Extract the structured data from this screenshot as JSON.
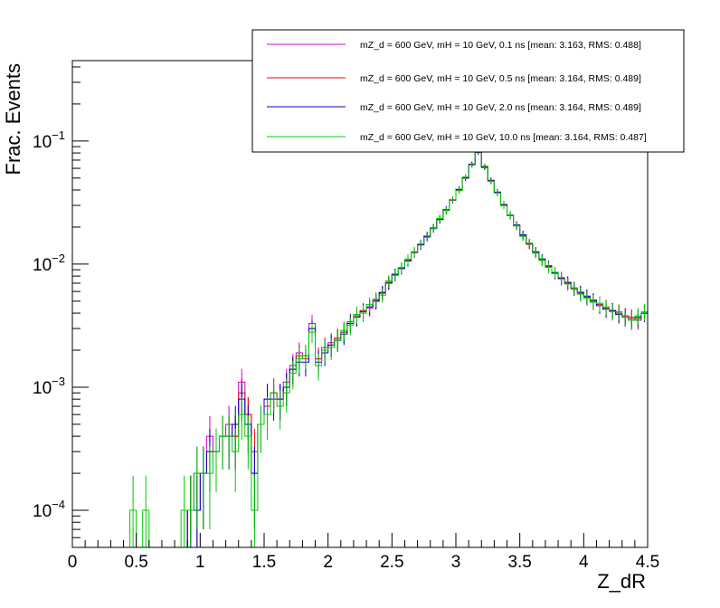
{
  "chart_data": {
    "type": "line",
    "title": "",
    "xlabel": "Z_dR",
    "ylabel": "Frac. Events",
    "xlim": [
      0,
      4.5
    ],
    "ylim": [
      5e-05,
      0.45
    ],
    "yscale": "log",
    "grid": false,
    "legend_position": "top-right",
    "x_ticks": [
      "0",
      "0.5",
      "1",
      "1.5",
      "2",
      "2.5",
      "3",
      "3.5",
      "4",
      "4.5"
    ],
    "y_ticks": [
      {
        "base": "10",
        "exp": "−4",
        "value": 0.0001
      },
      {
        "base": "10",
        "exp": "−3",
        "value": 0.001
      },
      {
        "base": "10",
        "exp": "−2",
        "value": 0.01
      },
      {
        "base": "10",
        "exp": "−1",
        "value": 0.1
      }
    ],
    "bins": 90,
    "x": [
      0.025,
      0.075,
      0.125,
      0.175,
      0.225,
      0.275,
      0.325,
      0.375,
      0.425,
      0.475,
      0.525,
      0.575,
      0.625,
      0.675,
      0.725,
      0.775,
      0.825,
      0.875,
      0.925,
      0.975,
      1.025,
      1.075,
      1.125,
      1.175,
      1.225,
      1.275,
      1.325,
      1.375,
      1.425,
      1.475,
      1.525,
      1.575,
      1.625,
      1.675,
      1.725,
      1.775,
      1.825,
      1.875,
      1.925,
      1.975,
      2.025,
      2.075,
      2.125,
      2.175,
      2.225,
      2.275,
      2.325,
      2.375,
      2.425,
      2.475,
      2.525,
      2.575,
      2.625,
      2.675,
      2.725,
      2.775,
      2.825,
      2.875,
      2.925,
      2.975,
      3.025,
      3.075,
      3.125,
      3.175,
      3.225,
      3.275,
      3.325,
      3.375,
      3.425,
      3.475,
      3.525,
      3.575,
      3.625,
      3.675,
      3.725,
      3.775,
      3.825,
      3.875,
      3.925,
      3.975,
      4.025,
      4.075,
      4.125,
      4.175,
      4.225,
      4.275,
      4.325,
      4.375,
      4.425,
      4.475
    ],
    "series": [
      {
        "name": "mZ_d = 600 GeV, mH = 10 GeV, 0.1 ns [mean: 3.163, RMS: 0.488]",
        "color": "#cc00cc",
        "values": [
          0,
          0,
          0,
          0,
          0,
          0,
          0,
          0,
          0,
          0,
          0,
          0,
          0,
          0,
          0,
          0,
          0,
          0,
          0.0001,
          0.0002,
          0.0002,
          0.0004,
          0.0003,
          0.0004,
          0.0005,
          0.0004,
          0.0011,
          0.0006,
          0.0002,
          0.0005,
          0.0008,
          0.0009,
          0.0008,
          0.0011,
          0.0015,
          0.0019,
          0.0018,
          0.0033,
          0.0017,
          0.0021,
          0.0023,
          0.0025,
          0.0028,
          0.0034,
          0.0039,
          0.0042,
          0.0044,
          0.005,
          0.0058,
          0.0071,
          0.0082,
          0.0093,
          0.0108,
          0.0125,
          0.0144,
          0.0169,
          0.0195,
          0.0232,
          0.0275,
          0.033,
          0.04,
          0.05,
          0.064,
          0.082,
          0.062,
          0.048,
          0.038,
          0.03,
          0.025,
          0.0205,
          0.017,
          0.0145,
          0.0124,
          0.0108,
          0.0095,
          0.0084,
          0.0077,
          0.007,
          0.0063,
          0.0058,
          0.0054,
          0.005,
          0.0047,
          0.0044,
          0.0042,
          0.004,
          0.0038,
          0.0037,
          0.0035,
          0.004
        ]
      },
      {
        "name": "mZ_d = 600 GeV, mH = 10 GeV, 0.5 ns [mean: 3.164, RMS: 0.489]",
        "color": "#ff0000",
        "values": [
          0,
          0,
          0,
          0,
          0,
          0,
          0,
          0,
          0,
          0,
          0,
          0,
          0,
          0,
          0,
          0,
          0,
          0,
          0.0001,
          0.0001,
          0.0002,
          0.0003,
          0.0003,
          0.0004,
          0.0004,
          0.0004,
          0.0009,
          0.0006,
          0.0003,
          0.0005,
          0.0007,
          0.0009,
          0.0008,
          0.001,
          0.0014,
          0.0018,
          0.0017,
          0.003,
          0.0017,
          0.002,
          0.0022,
          0.0025,
          0.0028,
          0.0033,
          0.0038,
          0.0042,
          0.0045,
          0.0051,
          0.0058,
          0.0071,
          0.0083,
          0.0093,
          0.0107,
          0.0124,
          0.0143,
          0.0168,
          0.0197,
          0.0232,
          0.0276,
          0.0332,
          0.04,
          0.0505,
          0.0645,
          0.0815,
          0.0615,
          0.0478,
          0.0382,
          0.0302,
          0.0248,
          0.0206,
          0.0171,
          0.0145,
          0.0125,
          0.0108,
          0.0096,
          0.0085,
          0.0076,
          0.007,
          0.0063,
          0.0059,
          0.0054,
          0.005,
          0.0047,
          0.0044,
          0.0042,
          0.004,
          0.0038,
          0.0036,
          0.0036,
          0.004
        ]
      },
      {
        "name": "mZ_d = 600 GeV, mH = 10 GeV, 2.0 ns [mean: 3.164, RMS: 0.489]",
        "color": "#0000cc",
        "values": [
          0,
          0,
          0,
          0,
          0,
          0,
          0,
          0,
          0,
          0,
          0,
          0,
          0,
          0,
          0,
          0,
          0,
          0,
          0.0001,
          0.0001,
          0.0002,
          0.0003,
          0.0003,
          0.0004,
          0.0004,
          0.0005,
          0.0008,
          0.0005,
          0.0002,
          0.0005,
          0.0008,
          0.0008,
          0.0008,
          0.001,
          0.0014,
          0.0016,
          0.0016,
          0.003,
          0.0016,
          0.0019,
          0.0022,
          0.0024,
          0.0027,
          0.0033,
          0.0037,
          0.0041,
          0.0045,
          0.005,
          0.0059,
          0.007,
          0.0082,
          0.0092,
          0.0106,
          0.0125,
          0.0144,
          0.0168,
          0.0196,
          0.023,
          0.0277,
          0.0334,
          0.0405,
          0.05,
          0.065,
          0.081,
          0.061,
          0.0475,
          0.0385,
          0.0305,
          0.025,
          0.0208,
          0.0173,
          0.0147,
          0.0126,
          0.011,
          0.0097,
          0.0085,
          0.0077,
          0.0071,
          0.0064,
          0.0059,
          0.0055,
          0.0051,
          0.0046,
          0.0043,
          0.0042,
          0.0039,
          0.0037,
          0.0035,
          0.0037,
          0.004
        ]
      },
      {
        "name": "mZ_d = 600 GeV, mH = 10 GeV, 10.0 ns [mean: 3.164, RMS: 0.487]",
        "color": "#00cc00",
        "values": [
          0,
          0,
          0,
          0,
          0,
          0,
          0,
          0,
          0,
          0.0001,
          0,
          0.0001,
          0,
          0,
          0,
          0,
          0,
          0.0001,
          0.0001,
          0.0002,
          0.0002,
          0.0002,
          0.0003,
          0.0004,
          0.0004,
          0.0003,
          0.0006,
          0.0004,
          0.0001,
          0.0005,
          0.0006,
          0.0009,
          0.0007,
          0.0009,
          0.0013,
          0.0017,
          0.0018,
          0.0028,
          0.0015,
          0.002,
          0.0021,
          0.0024,
          0.0029,
          0.0032,
          0.0039,
          0.004,
          0.0047,
          0.0052,
          0.0056,
          0.0073,
          0.0081,
          0.0094,
          0.011,
          0.0126,
          0.0146,
          0.0165,
          0.0194,
          0.0235,
          0.0272,
          0.0335,
          0.0395,
          0.051,
          0.064,
          0.083,
          0.0625,
          0.047,
          0.0378,
          0.0298,
          0.0252,
          0.0204,
          0.0168,
          0.0148,
          0.0123,
          0.0107,
          0.0094,
          0.0086,
          0.0078,
          0.0069,
          0.0064,
          0.0057,
          0.0053,
          0.0049,
          0.0048,
          0.0045,
          0.0041,
          0.0041,
          0.0037,
          0.0035,
          0.0038,
          0.0041
        ]
      }
    ]
  }
}
